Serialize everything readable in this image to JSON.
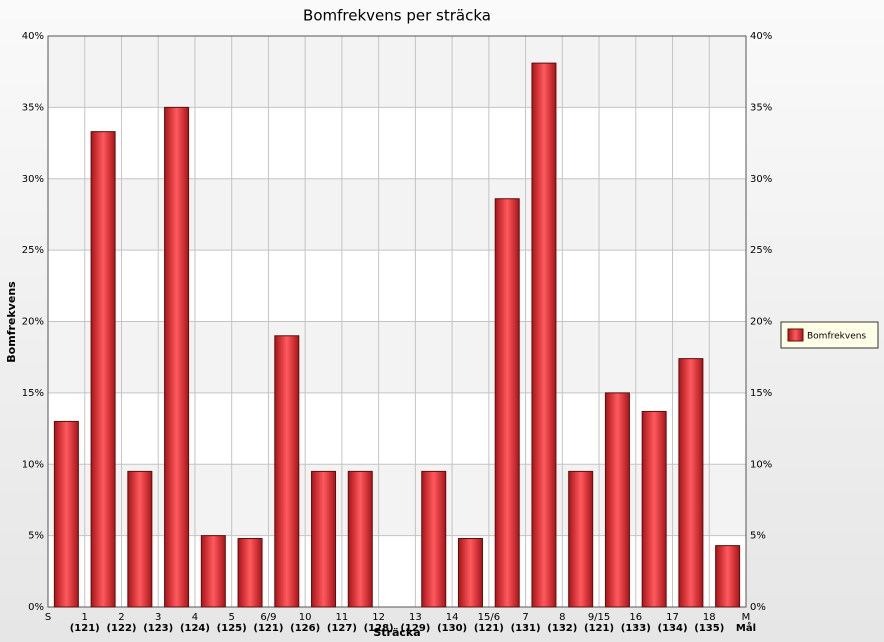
{
  "chart_data": {
    "type": "bar",
    "title": "Bomfrekvens per sträcka",
    "y_label": "Bomfrekvens",
    "x_label": "Sträcka",
    "controls": [
      {
        "code": "S",
        "number": null
      },
      {
        "code": "1",
        "number": "(121)"
      },
      {
        "code": "2",
        "number": "(122)"
      },
      {
        "code": "3",
        "number": "(123)"
      },
      {
        "code": "4",
        "number": "(124)"
      },
      {
        "code": "5",
        "number": "(125)"
      },
      {
        "code": "6/9",
        "number": "(121)"
      },
      {
        "code": "10",
        "number": "(126)"
      },
      {
        "code": "11",
        "number": "(127)"
      },
      {
        "code": "12",
        "number": "(128)"
      },
      {
        "code": "13",
        "number": "(129)"
      },
      {
        "code": "14",
        "number": "(130)"
      },
      {
        "code": "15/6",
        "number": "(121)"
      },
      {
        "code": "7",
        "number": "(131)"
      },
      {
        "code": "8",
        "number": "(132)"
      },
      {
        "code": "9/15",
        "number": "(121)"
      },
      {
        "code": "16",
        "number": "(133)"
      },
      {
        "code": "17",
        "number": "(134)"
      },
      {
        "code": "18",
        "number": "(135)"
      },
      {
        "code": "M",
        "number": "Mål"
      }
    ],
    "series": [
      {
        "name": "Bomfrekvens",
        "color": "#e8383c",
        "values": [
          13.0,
          33.3,
          9.5,
          35.0,
          5.0,
          4.8,
          19.0,
          9.5,
          9.5,
          0,
          9.5,
          4.8,
          28.6,
          38.1,
          9.5,
          15.0,
          13.7,
          17.4,
          4.3
        ]
      }
    ],
    "ylim": [
      0,
      40
    ],
    "yticks": [
      {
        "value": 0,
        "label": "0%"
      },
      {
        "value": 5,
        "label": "5%"
      },
      {
        "value": 10,
        "label": "10%"
      },
      {
        "value": 15,
        "label": "15%"
      },
      {
        "value": 20,
        "label": "20%"
      },
      {
        "value": 25,
        "label": "25%"
      },
      {
        "value": 30,
        "label": "30%"
      },
      {
        "value": 35,
        "label": "35%"
      },
      {
        "value": 40,
        "label": "40%"
      }
    ],
    "grid": true,
    "legend": "right"
  }
}
